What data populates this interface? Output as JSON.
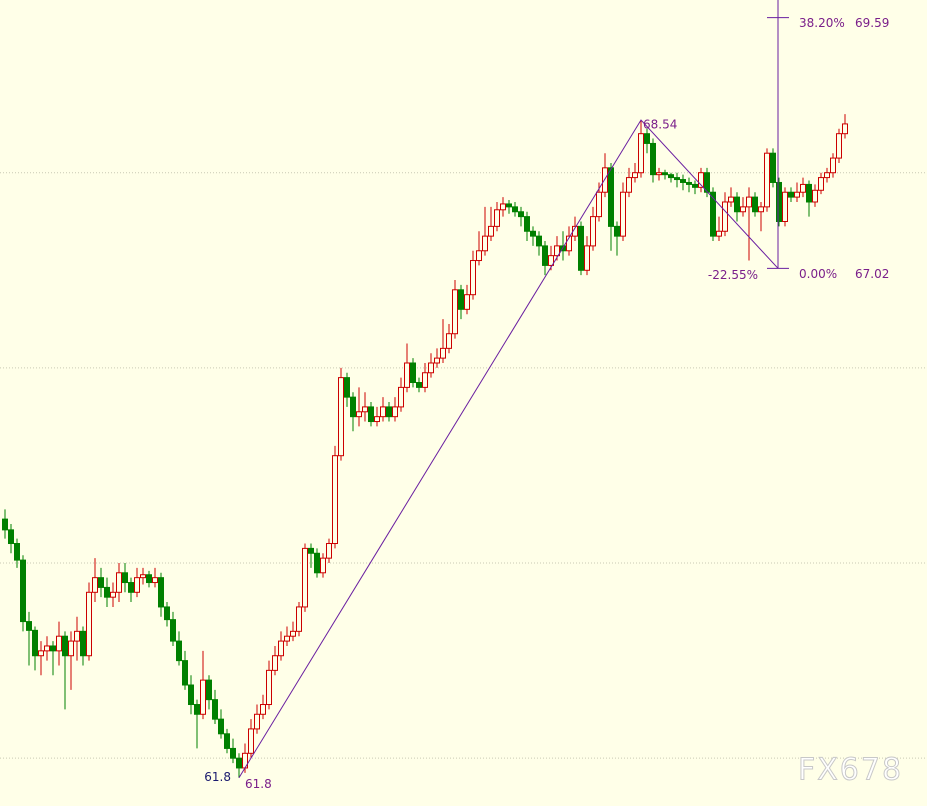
{
  "chart_data": {
    "type": "candlestick",
    "ylim": [
      61.51,
      69.77
    ],
    "yticks": [
      62,
      64,
      66,
      68
    ],
    "grid": true,
    "up_color": "#cc0000",
    "down_color": "#008000",
    "line_color": "#6a1fa0",
    "candles": [
      [
        64.45,
        64.55,
        64.25,
        64.34
      ],
      [
        64.34,
        64.4,
        64.1,
        64.2
      ],
      [
        64.2,
        64.25,
        63.95,
        64.03
      ],
      [
        64.03,
        64.08,
        63.3,
        63.4
      ],
      [
        63.4,
        63.5,
        62.95,
        63.31
      ],
      [
        63.31,
        63.35,
        62.9,
        63.05
      ],
      [
        63.05,
        63.2,
        62.85,
        63.1
      ],
      [
        63.1,
        63.25,
        63.0,
        63.15
      ],
      [
        63.15,
        63.2,
        62.85,
        63.1
      ],
      [
        63.1,
        63.4,
        62.95,
        63.25
      ],
      [
        63.25,
        63.3,
        62.5,
        63.05
      ],
      [
        63.05,
        63.3,
        62.7,
        63.2
      ],
      [
        63.2,
        63.45,
        63.0,
        63.3
      ],
      [
        63.3,
        63.35,
        62.95,
        63.05
      ],
      [
        63.05,
        63.8,
        63.0,
        63.7
      ],
      [
        63.7,
        64.05,
        63.6,
        63.85
      ],
      [
        63.85,
        63.95,
        63.65,
        63.75
      ],
      [
        63.75,
        63.85,
        63.55,
        63.65
      ],
      [
        63.65,
        63.8,
        63.55,
        63.7
      ],
      [
        63.7,
        64.0,
        63.6,
        63.9
      ],
      [
        63.9,
        64.0,
        63.7,
        63.8
      ],
      [
        63.8,
        63.85,
        63.6,
        63.7
      ],
      [
        63.7,
        63.95,
        63.65,
        63.85
      ],
      [
        63.85,
        63.95,
        63.78,
        63.88
      ],
      [
        63.88,
        63.92,
        63.75,
        63.8
      ],
      [
        63.8,
        63.95,
        63.75,
        63.85
      ],
      [
        63.85,
        63.9,
        63.45,
        63.55
      ],
      [
        63.55,
        63.6,
        63.35,
        63.42
      ],
      [
        63.42,
        63.5,
        63.15,
        63.2
      ],
      [
        63.2,
        63.3,
        62.95,
        63.0
      ],
      [
        63.0,
        63.1,
        62.7,
        62.75
      ],
      [
        62.75,
        62.85,
        62.45,
        62.55
      ],
      [
        62.55,
        62.6,
        62.1,
        62.45
      ],
      [
        62.45,
        63.1,
        62.4,
        62.8
      ],
      [
        62.8,
        62.85,
        62.5,
        62.6
      ],
      [
        62.6,
        62.7,
        62.35,
        62.4
      ],
      [
        62.4,
        62.5,
        62.2,
        62.25
      ],
      [
        62.25,
        62.3,
        62.05,
        62.1
      ],
      [
        62.1,
        62.2,
        61.95,
        62.0
      ],
      [
        62.0,
        62.05,
        61.8,
        61.9
      ],
      [
        61.9,
        62.15,
        61.85,
        62.05
      ],
      [
        62.05,
        62.4,
        62.0,
        62.3
      ],
      [
        62.3,
        62.55,
        62.25,
        62.45
      ],
      [
        62.45,
        62.65,
        62.4,
        62.55
      ],
      [
        62.55,
        63.0,
        62.5,
        62.9
      ],
      [
        62.9,
        63.15,
        62.85,
        63.05
      ],
      [
        63.05,
        63.3,
        63.0,
        63.2
      ],
      [
        63.2,
        63.35,
        63.15,
        63.25
      ],
      [
        63.25,
        63.4,
        63.2,
        63.3
      ],
      [
        63.3,
        63.6,
        63.25,
        63.55
      ],
      [
        63.55,
        64.2,
        63.5,
        64.15
      ],
      [
        64.15,
        64.2,
        63.95,
        64.1
      ],
      [
        64.1,
        64.15,
        63.85,
        63.9
      ],
      [
        63.9,
        64.1,
        63.85,
        64.05
      ],
      [
        64.05,
        64.25,
        64.0,
        64.2
      ],
      [
        64.2,
        65.2,
        64.15,
        65.1
      ],
      [
        65.1,
        66.0,
        65.05,
        65.9
      ],
      [
        65.9,
        65.95,
        65.6,
        65.7
      ],
      [
        65.7,
        65.75,
        65.35,
        65.5
      ],
      [
        65.5,
        65.8,
        65.4,
        65.55
      ],
      [
        65.55,
        65.75,
        65.45,
        65.6
      ],
      [
        65.6,
        65.65,
        65.4,
        65.45
      ],
      [
        65.45,
        65.6,
        65.4,
        65.5
      ],
      [
        65.5,
        65.7,
        65.45,
        65.6
      ],
      [
        65.6,
        65.65,
        65.45,
        65.5
      ],
      [
        65.5,
        65.7,
        65.45,
        65.6
      ],
      [
        65.6,
        65.9,
        65.55,
        65.8
      ],
      [
        65.8,
        66.25,
        65.75,
        66.05
      ],
      [
        66.05,
        66.1,
        65.8,
        65.85
      ],
      [
        65.85,
        65.9,
        65.75,
        65.8
      ],
      [
        65.8,
        66.05,
        65.75,
        65.95
      ],
      [
        65.95,
        66.15,
        65.9,
        66.05
      ],
      [
        66.05,
        66.2,
        66.0,
        66.1
      ],
      [
        66.1,
        66.5,
        66.05,
        66.2
      ],
      [
        66.2,
        66.45,
        66.15,
        66.35
      ],
      [
        66.35,
        66.9,
        66.3,
        66.8
      ],
      [
        66.8,
        66.85,
        66.5,
        66.6
      ],
      [
        66.6,
        66.85,
        66.55,
        66.75
      ],
      [
        66.75,
        67.2,
        66.7,
        67.1
      ],
      [
        67.1,
        67.4,
        67.05,
        67.2
      ],
      [
        67.2,
        67.65,
        67.15,
        67.35
      ],
      [
        67.35,
        67.65,
        67.3,
        67.45
      ],
      [
        67.45,
        67.7,
        67.4,
        67.62
      ],
      [
        67.62,
        67.75,
        67.55,
        67.68
      ],
      [
        67.68,
        67.72,
        67.58,
        67.65
      ],
      [
        67.65,
        67.7,
        67.55,
        67.6
      ],
      [
        67.6,
        67.65,
        67.45,
        67.55
      ],
      [
        67.55,
        67.6,
        67.3,
        67.4
      ],
      [
        67.4,
        67.45,
        67.25,
        67.35
      ],
      [
        67.35,
        67.4,
        67.15,
        67.25
      ],
      [
        67.25,
        67.3,
        66.95,
        67.05
      ],
      [
        67.05,
        67.25,
        67.0,
        67.15
      ],
      [
        67.15,
        67.35,
        67.1,
        67.25
      ],
      [
        67.25,
        67.4,
        67.1,
        67.2
      ],
      [
        67.2,
        67.45,
        67.15,
        67.35
      ],
      [
        67.35,
        67.55,
        67.3,
        67.45
      ],
      [
        67.45,
        67.5,
        66.95,
        67.0
      ],
      [
        67.0,
        67.35,
        66.95,
        67.25
      ],
      [
        67.25,
        67.65,
        67.2,
        67.55
      ],
      [
        67.55,
        67.9,
        67.5,
        67.8
      ],
      [
        67.8,
        68.2,
        67.75,
        68.05
      ],
      [
        68.05,
        68.1,
        67.2,
        67.45
      ],
      [
        67.45,
        67.5,
        67.15,
        67.35
      ],
      [
        67.35,
        67.9,
        67.3,
        67.8
      ],
      [
        67.8,
        68.05,
        67.75,
        67.95
      ],
      [
        67.95,
        68.1,
        67.9,
        68.0
      ],
      [
        68.0,
        68.54,
        67.95,
        68.4
      ],
      [
        68.4,
        68.45,
        68.2,
        68.3
      ],
      [
        68.3,
        68.35,
        67.9,
        67.98
      ],
      [
        67.98,
        68.05,
        67.92,
        68.0
      ],
      [
        68.0,
        68.03,
        67.93,
        67.98
      ],
      [
        67.98,
        68.0,
        67.9,
        67.95
      ],
      [
        67.95,
        68.0,
        67.85,
        67.93
      ],
      [
        67.93,
        67.98,
        67.82,
        67.9
      ],
      [
        67.9,
        67.95,
        67.8,
        67.88
      ],
      [
        67.88,
        67.92,
        67.78,
        67.85
      ],
      [
        67.85,
        68.05,
        67.8,
        68.0
      ],
      [
        68.0,
        68.05,
        67.75,
        67.8
      ],
      [
        67.8,
        67.85,
        67.3,
        67.35
      ],
      [
        67.35,
        67.55,
        67.3,
        67.4
      ],
      [
        67.4,
        67.8,
        67.35,
        67.7
      ],
      [
        67.7,
        67.85,
        67.65,
        67.75
      ],
      [
        67.75,
        67.8,
        67.5,
        67.6
      ],
      [
        67.6,
        67.75,
        67.55,
        67.65
      ],
      [
        67.65,
        67.85,
        67.1,
        67.75
      ],
      [
        67.75,
        67.8,
        67.55,
        67.6
      ],
      [
        67.6,
        67.7,
        67.4,
        67.65
      ],
      [
        67.65,
        68.25,
        67.6,
        68.2
      ],
      [
        68.2,
        68.25,
        67.85,
        67.9
      ],
      [
        67.9,
        67.95,
        67.45,
        67.5
      ],
      [
        67.5,
        67.85,
        67.45,
        67.8
      ],
      [
        67.8,
        67.85,
        67.7,
        67.75
      ],
      [
        67.75,
        67.9,
        67.7,
        67.8
      ],
      [
        67.8,
        67.95,
        67.75,
        67.88
      ],
      [
        67.88,
        67.92,
        67.55,
        67.7
      ],
      [
        67.7,
        67.88,
        67.65,
        67.82
      ],
      [
        67.82,
        68.0,
        67.78,
        67.95
      ],
      [
        67.95,
        68.05,
        67.9,
        68.0
      ],
      [
        68.0,
        68.2,
        67.95,
        68.15
      ],
      [
        68.15,
        68.45,
        68.1,
        68.4
      ],
      [
        68.4,
        68.6,
        68.35,
        68.5
      ]
    ],
    "annotations": {
      "low": 61.8,
      "high": 68.54,
      "fib": [
        {
          "level": "38.20%",
          "price": 69.59
        },
        {
          "level": "0.00%",
          "price": 67.02
        }
      ],
      "retrace": "-22.55%"
    },
    "watermark": "FX678"
  }
}
